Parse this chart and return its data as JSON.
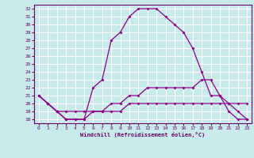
{
  "xlabel": "Windchill (Refroidissement éolien,°C)",
  "background_color": "#c8eaea",
  "grid_color": "#ffffff",
  "line_color": "#880088",
  "x_hours": [
    0,
    1,
    2,
    3,
    4,
    5,
    6,
    7,
    8,
    9,
    10,
    11,
    12,
    13,
    14,
    15,
    16,
    17,
    18,
    19,
    20,
    21,
    22,
    23
  ],
  "temp_series": [
    21,
    20,
    19,
    18,
    18,
    18,
    22,
    23,
    28,
    29,
    31,
    32,
    32,
    32,
    31,
    30,
    29,
    27,
    24,
    21,
    21,
    19,
    18,
    18
  ],
  "windchill2_series": [
    21,
    20,
    19,
    18,
    18,
    18,
    19,
    19,
    20,
    20,
    21,
    21,
    22,
    22,
    22,
    22,
    22,
    22,
    23,
    23,
    21,
    20,
    19,
    18
  ],
  "windchill_series": [
    21,
    20,
    19,
    19,
    19,
    19,
    19,
    19,
    19,
    19,
    20,
    20,
    20,
    20,
    20,
    20,
    20,
    20,
    20,
    20,
    20,
    20,
    20,
    20
  ],
  "ylim": [
    17.5,
    32.5
  ],
  "yticks": [
    18,
    19,
    20,
    21,
    22,
    23,
    24,
    25,
    26,
    27,
    28,
    29,
    30,
    31,
    32
  ],
  "xlim": [
    -0.5,
    23.5
  ],
  "xticks": [
    0,
    1,
    2,
    3,
    4,
    5,
    6,
    7,
    8,
    9,
    10,
    11,
    12,
    13,
    14,
    15,
    16,
    17,
    18,
    19,
    20,
    21,
    22,
    23
  ]
}
